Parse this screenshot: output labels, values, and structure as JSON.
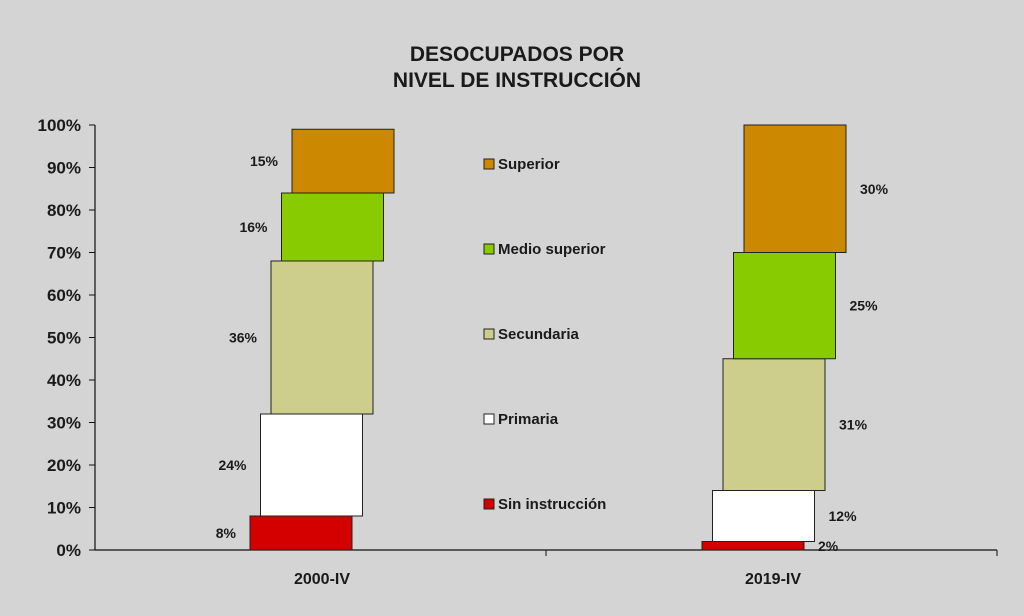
{
  "chart_data": {
    "type": "bar",
    "stacked": true,
    "title": [
      "DESOCUPADOS POR",
      "NIVEL DE INSTRUCCIÓN"
    ],
    "categories": [
      "2000-IV",
      "2019-IV"
    ],
    "yticks": [
      "0%",
      "10%",
      "20%",
      "30%",
      "40%",
      "50%",
      "60%",
      "70%",
      "80%",
      "90%",
      "100%"
    ],
    "ylim": [
      0,
      100
    ],
    "grid": false,
    "legend_position": "center",
    "series": [
      {
        "name": "Sin instrucción",
        "color": "#d40000",
        "values": [
          8,
          2
        ],
        "labels": [
          "8%",
          "2%"
        ]
      },
      {
        "name": "Primaria",
        "color": "#ffffff",
        "values": [
          24,
          12
        ],
        "labels": [
          "24%",
          "12%"
        ]
      },
      {
        "name": "Secundaria",
        "color": "#cece8c",
        "values": [
          36,
          31
        ],
        "labels": [
          "36%",
          "31%"
        ]
      },
      {
        "name": "Medio superior",
        "color": "#88cc00",
        "values": [
          16,
          25
        ],
        "labels": [
          "16%",
          "25%"
        ]
      },
      {
        "name": "Superior",
        "color": "#cc8800",
        "values": [
          15,
          30
        ],
        "labels": [
          "15%",
          "30%"
        ]
      }
    ],
    "legend_order": [
      "Superior",
      "Medio superior",
      "Secundaria",
      "Primaria",
      "Sin instrucción"
    ]
  }
}
